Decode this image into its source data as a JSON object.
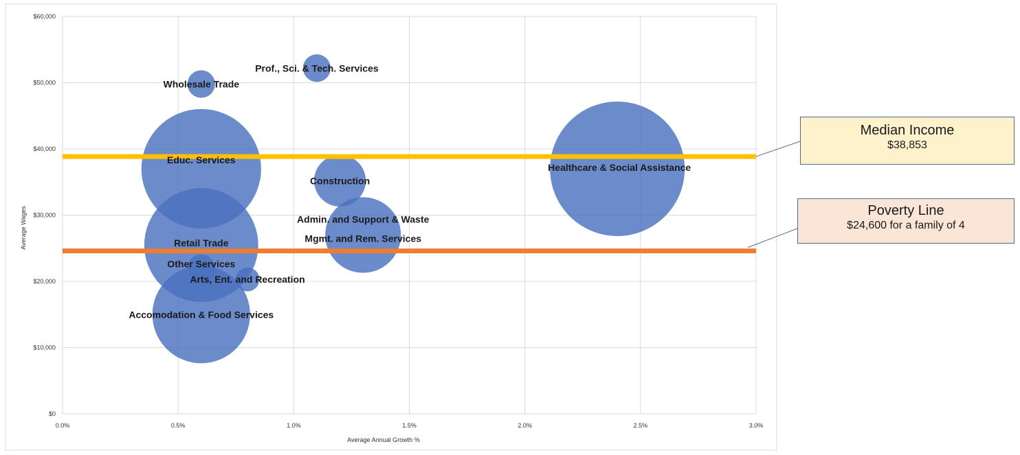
{
  "chart_data": {
    "type": "bubble",
    "title": "",
    "xlabel": "Average Annual Growth %",
    "ylabel": "Average Wages",
    "xlim": [
      0,
      3.0
    ],
    "ylim": [
      0,
      60000
    ],
    "x_ticks": [
      "0.0%",
      "0.5%",
      "1.0%",
      "1.5%",
      "2.0%",
      "2.5%",
      "3.0%"
    ],
    "y_ticks": [
      "$0",
      "$10,000",
      "$20,000",
      "$30,000",
      "$40,000",
      "$50,000",
      "$60,000"
    ],
    "grid": true,
    "bubble_color": "#4a72c0",
    "points": [
      {
        "label": "Prof., Sci. & Tech. Services",
        "x": 1.1,
        "y": 52200,
        "size": 4
      },
      {
        "label": "Wholesale Trade",
        "x": 0.6,
        "y": 49800,
        "size": 4
      },
      {
        "label": "Educ. Services",
        "x": 0.6,
        "y": 37000,
        "size": 75
      },
      {
        "label": "Construction",
        "x": 1.2,
        "y": 35200,
        "size": 14
      },
      {
        "label": "Healthcare & Social Assistance",
        "x": 2.4,
        "y": 37000,
        "size": 95
      },
      {
        "label": "Admin. and Support & Waste Mgmt. and Rem. Services",
        "x": 1.3,
        "y": 27000,
        "size": 30
      },
      {
        "label": "Retail Trade",
        "x": 0.6,
        "y": 25500,
        "size": 68
      },
      {
        "label": "Other Services",
        "x": 0.6,
        "y": 22000,
        "size": 4
      },
      {
        "label": "Arts, Ent. and Recreation",
        "x": 0.8,
        "y": 20300,
        "size": 3
      },
      {
        "label": "Accomodation & Food Services",
        "x": 0.6,
        "y": 15000,
        "size": 50
      }
    ],
    "reference_lines": [
      {
        "name": "Median Income",
        "value": 38853,
        "color": "#ffc000"
      },
      {
        "name": "Poverty Line",
        "value": 24600,
        "color": "#ed7d31"
      }
    ]
  },
  "callouts": {
    "median": {
      "title": "Median Income",
      "value": "$38,853"
    },
    "poverty": {
      "title": "Poverty Line",
      "value": "$24,600 for a family of 4"
    }
  }
}
